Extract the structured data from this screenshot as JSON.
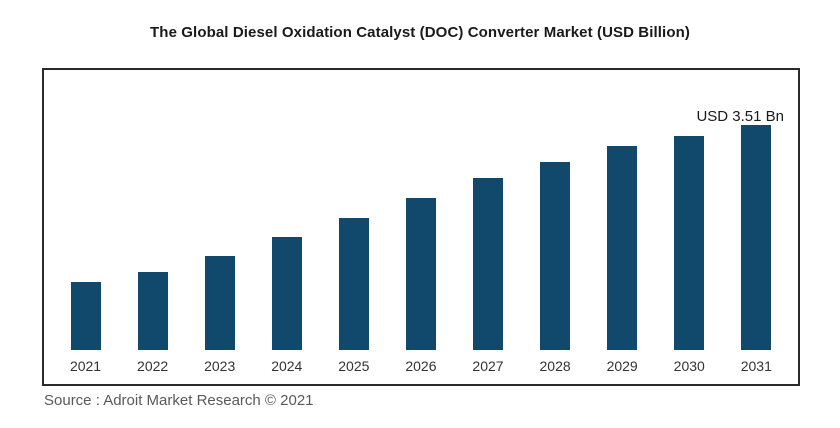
{
  "chart_data": {
    "type": "bar",
    "title": "The Global Diesel Oxidation Catalyst (DOC) Converter Market (USD Billion)",
    "categories": [
      "2021",
      "2022",
      "2023",
      "2024",
      "2025",
      "2026",
      "2027",
      "2028",
      "2029",
      "2030",
      "2031"
    ],
    "values": [
      1.06,
      1.22,
      1.47,
      1.76,
      2.06,
      2.37,
      2.68,
      2.93,
      3.18,
      3.35,
      3.51
    ],
    "xlabel": "",
    "ylabel": "",
    "ylim": [
      0,
      3.9
    ],
    "grid": false,
    "legend": "none",
    "annotation": "USD 3.51 Bn",
    "bar_color": "#10496b"
  },
  "source": {
    "text": "Source : Adroit Market Research © 2021"
  }
}
